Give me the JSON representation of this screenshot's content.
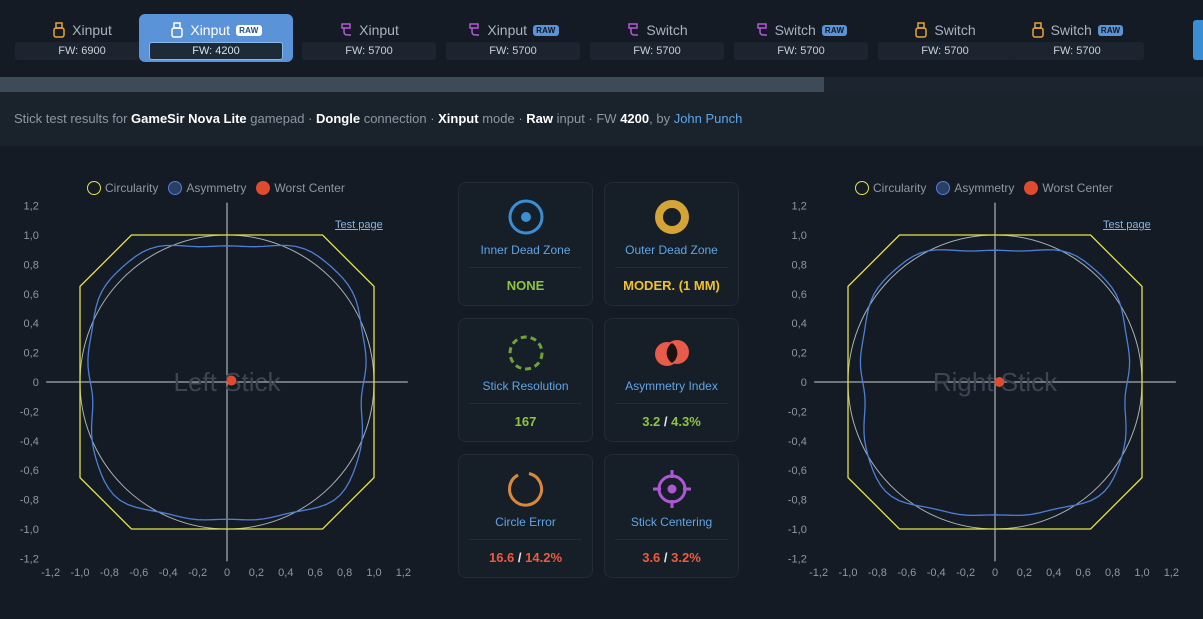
{
  "tabs": [
    {
      "label": "Xinput",
      "raw": "",
      "fw": "FW: 6900",
      "icon": "usb-dongle-icon",
      "color": "#e8a33d"
    },
    {
      "label": "Xinput",
      "raw": "RAW",
      "fw": "FW: 4200",
      "icon": "usb-dongle-icon",
      "color": "#ffffff",
      "active": true
    },
    {
      "label": "Xinput",
      "raw": "",
      "fw": "FW: 5700",
      "icon": "usb-cable-icon",
      "color": "#b55ad6"
    },
    {
      "label": "Xinput",
      "raw": "RAW",
      "fw": "FW: 5700",
      "icon": "usb-cable-icon",
      "color": "#b55ad6"
    },
    {
      "label": "Switch",
      "raw": "",
      "fw": "FW: 5700",
      "icon": "usb-cable-icon",
      "color": "#b55ad6"
    },
    {
      "label": "Switch",
      "raw": "RAW",
      "fw": "FW: 5700",
      "icon": "usb-cable-icon",
      "color": "#b55ad6"
    },
    {
      "label": "Switch",
      "raw": "",
      "fw": "FW: 5700",
      "icon": "usb-dongle-icon",
      "color": "#e8a33d"
    },
    {
      "label": "Switch",
      "raw": "RAW",
      "fw": "FW: 5700",
      "icon": "usb-dongle-icon",
      "color": "#e8a33d"
    }
  ],
  "description": {
    "prefix": "Stick test results for ",
    "device": "GameSir Nova Lite",
    "sep1": " gamepad · ",
    "connection": "Dongle",
    "sep2": " connection · ",
    "mode": "Xinput",
    "sep3": " mode · ",
    "input": "Raw",
    "sep4": " input · FW ",
    "fw": "4200",
    "sep5": ", by ",
    "author": "John Punch"
  },
  "legend": {
    "circularity": "Circularity",
    "asymmetry": "Asymmetry",
    "worst_center": "Worst Center"
  },
  "colors": {
    "circularity": "#e6e24a",
    "asymmetry": "#4d7fd6",
    "worst_center": "#e04a2f",
    "accent": "#5b93d8"
  },
  "left_plot": {
    "label": "Left Stick",
    "test_link": "Test page"
  },
  "right_plot": {
    "label": "Right Stick",
    "test_link": "Test page"
  },
  "axis_ticks": [
    "-1,2",
    "-1,0",
    "-0,8",
    "-0,6",
    "-0,4",
    "-0,2",
    "0",
    "0,2",
    "0,4",
    "0,6",
    "0,8",
    "1,0",
    "1,2"
  ],
  "cards": [
    {
      "title": "Inner Dead Zone",
      "icon": "inner-dead-zone-icon",
      "value": "NONE"
    },
    {
      "title": "Outer Dead Zone",
      "icon": "outer-dead-zone-icon",
      "value": "MODER. (1 MM)"
    },
    {
      "title": "Stick Resolution",
      "icon": "resolution-icon",
      "value": "167"
    },
    {
      "title": "Asymmetry Index",
      "icon": "asymmetry-icon",
      "value_a": "3.2",
      "slash": " / ",
      "value_b": "4.3%"
    },
    {
      "title": "Circle Error",
      "icon": "circle-error-icon",
      "value_a": "16.6",
      "slash": " / ",
      "value_b": "14.2%"
    },
    {
      "title": "Stick Centering",
      "icon": "crosshair-icon",
      "value_a": "3.6",
      "slash": " / ",
      "value_b": "3.2%"
    }
  ]
}
